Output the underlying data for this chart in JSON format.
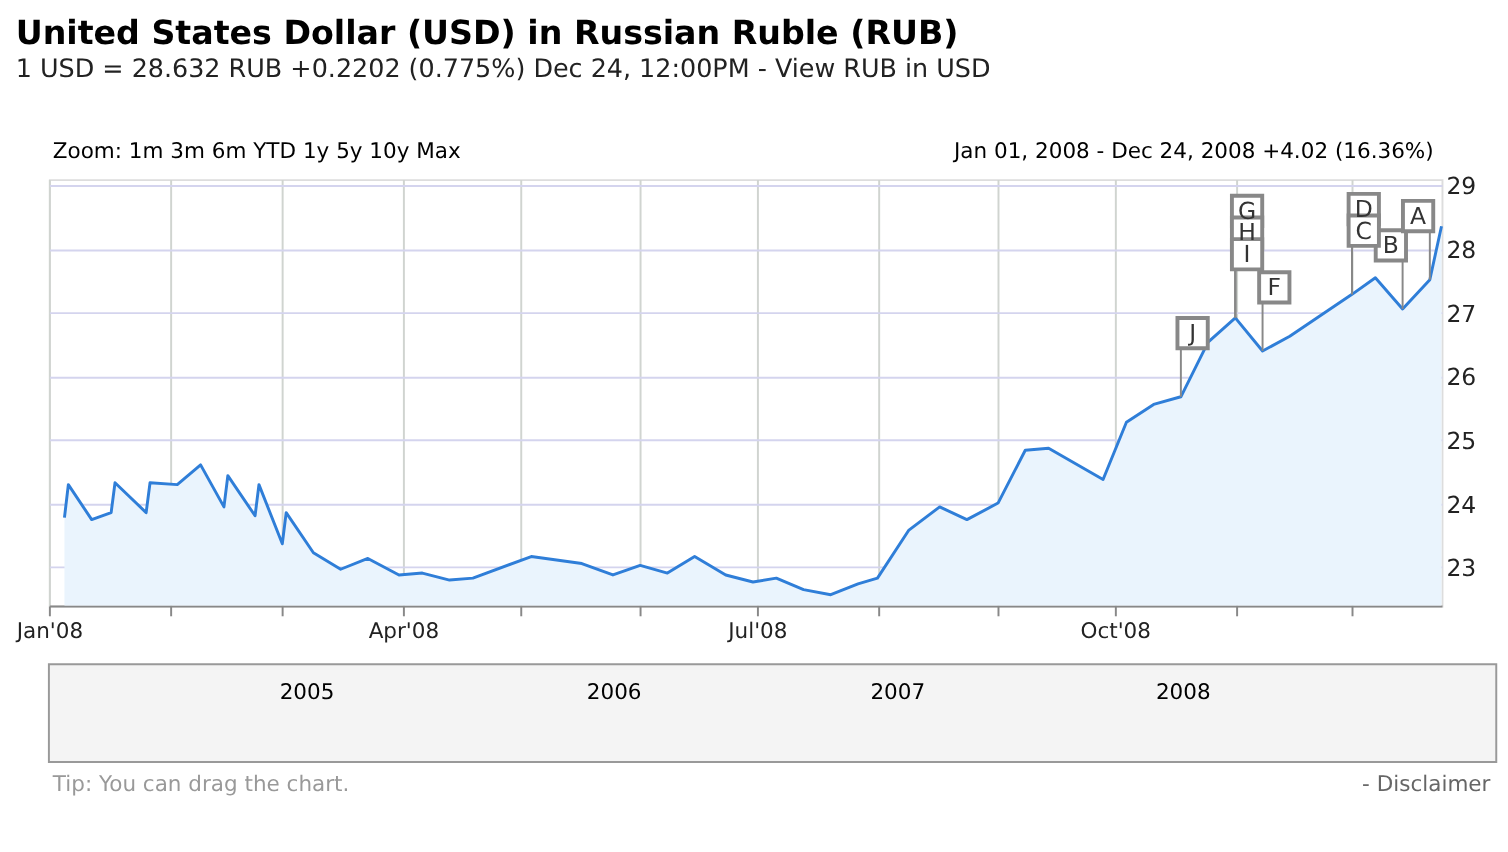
{
  "chart_data": {
    "type": "area",
    "title": "United States Dollar (USD) in Russian Ruble (RUB)",
    "subtitle": "1 USD = 28.632 RUB  +0.2202 (0.775%) Dec 24, 12:00PM - View RUB in USD",
    "x": [
      "2008-01-05",
      "2008-01-06",
      "2008-01-12",
      "2008-01-17",
      "2008-01-18",
      "2008-01-26",
      "2008-01-27",
      "2008-02-03",
      "2008-02-09",
      "2008-02-15",
      "2008-02-16",
      "2008-02-23",
      "2008-02-24",
      "2008-03-01",
      "2008-03-02",
      "2008-03-09",
      "2008-03-16",
      "2008-03-23",
      "2008-03-31",
      "2008-04-06",
      "2008-04-13",
      "2008-04-19",
      "2008-05-04",
      "2008-05-17",
      "2008-05-25",
      "2008-06-01",
      "2008-06-08",
      "2008-06-15",
      "2008-06-23",
      "2008-06-30",
      "2008-07-06",
      "2008-07-13",
      "2008-07-20",
      "2008-07-27",
      "2008-08-01",
      "2008-08-09",
      "2008-08-17",
      "2008-08-24",
      "2008-09-01",
      "2008-09-08",
      "2008-09-14",
      "2008-09-28",
      "2008-10-04",
      "2008-10-11",
      "2008-10-18",
      "2008-10-25",
      "2008-11-01",
      "2008-11-08",
      "2008-11-15",
      "2008-12-01",
      "2008-12-07",
      "2008-12-14",
      "2008-12-21",
      "2008-12-24"
    ],
    "series": [
      {
        "color": "#2f7ed8",
        "values": [
          23.78,
          24.3,
          23.75,
          23.86,
          24.33,
          23.86,
          24.33,
          24.3,
          24.61,
          23.95,
          24.44,
          23.81,
          24.3,
          23.37,
          23.86,
          23.23,
          22.97,
          23.14,
          22.88,
          22.91,
          22.8,
          22.83,
          23.17,
          23.06,
          22.88,
          23.03,
          22.91,
          23.17,
          22.88,
          22.77,
          22.83,
          22.65,
          22.57,
          22.74,
          22.83,
          23.58,
          23.95,
          23.75,
          24.01,
          24.84,
          24.87,
          24.38,
          25.28,
          25.56,
          25.68,
          26.54,
          26.92,
          26.4,
          26.63,
          27.29,
          27.55,
          27.06,
          27.52,
          28.36
        ]
      }
    ],
    "xlim": [
      "2008-01-01",
      "2008-12-24"
    ],
    "xticks": [
      {
        "value": "2008-01-01",
        "label": "Jan'08"
      },
      {
        "value": "2008-02-01",
        "label": null
      },
      {
        "value": "2008-03-01",
        "label": null
      },
      {
        "value": "2008-04-01",
        "label": "Apr'08"
      },
      {
        "value": "2008-05-01",
        "label": null
      },
      {
        "value": "2008-06-01",
        "label": null
      },
      {
        "value": "2008-07-01",
        "label": "Jul'08"
      },
      {
        "value": "2008-08-01",
        "label": null
      },
      {
        "value": "2008-09-01",
        "label": null
      },
      {
        "value": "2008-10-01",
        "label": "Oct'08"
      },
      {
        "value": "2008-11-01",
        "label": null
      },
      {
        "value": "2008-12-01",
        "label": null
      }
    ],
    "ylim": [
      22.4,
      29.1
    ],
    "yticks": [
      23,
      24,
      25,
      26,
      27,
      28,
      29
    ],
    "grid": true,
    "annotations": [
      "Zoom: 1m 3m 6m YTD 1y 5y 10y Max",
      "Jan 01, 2008 - Dec 24, 2008  +4.02 (16.36%)",
      "2005",
      "2006",
      "2007",
      "2008",
      "Tip: You can drag the chart.",
      "- Disclaimer",
      {
        "text": "J",
        "x": "2008-10-18",
        "y": 25.68
      },
      {
        "text": "G",
        "x": "2008-11-01",
        "y": 26.92
      },
      {
        "text": "H",
        "x": "2008-11-01",
        "y": 26.92
      },
      {
        "text": "I",
        "x": "2008-11-01",
        "y": 26.92
      },
      {
        "text": "F",
        "x": "2008-11-08",
        "y": 26.4
      },
      {
        "text": "D",
        "x": "2008-12-01",
        "y": 27.29
      },
      {
        "text": "C",
        "x": "2008-12-01",
        "y": 27.29
      },
      {
        "text": "B",
        "x": "2008-12-14",
        "y": 27.06
      },
      {
        "text": "A",
        "x": "2008-12-21",
        "y": 27.52
      }
    ]
  }
}
